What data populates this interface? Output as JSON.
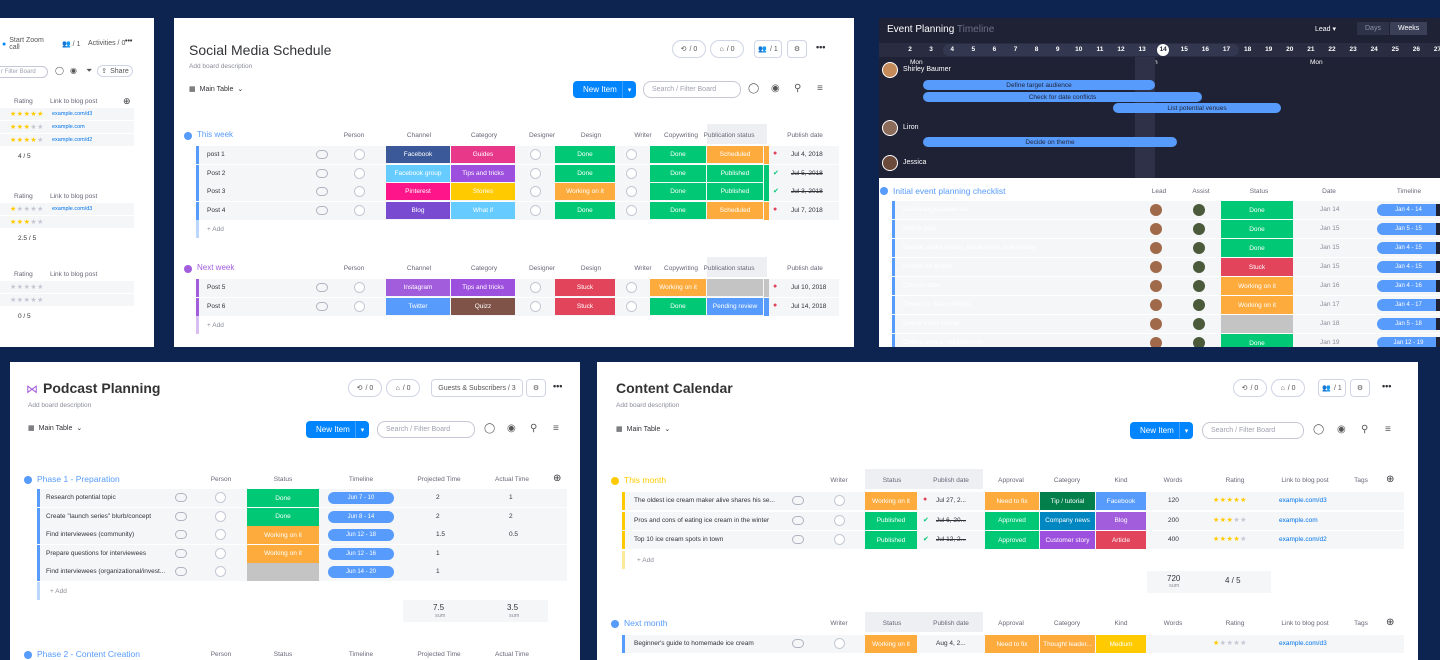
{
  "colors": {
    "bg": "#0d2450",
    "blue": "#0085ff",
    "green": "#00c875",
    "orange": "#fdab3d",
    "red": "#e2445c",
    "purple": "#a25ddc",
    "gray": "#c4c4c4"
  },
  "p1": {
    "start_zoom": "Start Zoom call",
    "members": "1",
    "activities": "Activities / 0",
    "filter": "r Filter Board",
    "share": "Share",
    "groups": [
      {
        "h_rating": "Rating",
        "h_link": "Link to blog post",
        "rows": [
          {
            "stars": 5,
            "link": "example.com/d3"
          },
          {
            "stars": 3,
            "link": "example.com"
          },
          {
            "stars": 4,
            "link": "example.com/d2"
          }
        ],
        "summary": "4 / 5"
      },
      {
        "h_rating": "Rating",
        "h_link": "Link to blog post",
        "rows": [
          {
            "stars": 1,
            "link": "example.com/d3"
          },
          {
            "stars": 3,
            "link": ""
          }
        ],
        "summary": "2.5 / 5"
      },
      {
        "h_rating": "Rating",
        "h_link": "Link to blog post",
        "rows": [
          {
            "stars": 0,
            "link": ""
          },
          {
            "stars": 0,
            "link": ""
          }
        ],
        "summary": "0 / 5"
      }
    ]
  },
  "p2": {
    "title": "Social Media Schedule",
    "desc": "Add board description",
    "view": "Main Table",
    "new_item": "New Item",
    "search": "Search / Filter Board",
    "count_a": "/ 0",
    "count_b": "/ 0",
    "members": "/ 1",
    "headers": {
      "person": "Person",
      "channel": "Channel",
      "category": "Category",
      "designer": "Designer",
      "design": "Design",
      "writer": "Writer",
      "copywriting": "Copywriting",
      "pubstatus": "Publication status",
      "pubdate": "Publish date"
    },
    "groups": [
      {
        "name": "This week",
        "color": "#579bfc",
        "add": "+ Add",
        "rows": [
          {
            "name": "post 1",
            "channel": "Facebook",
            "channel_c": "#3b5998",
            "cat": "Guides",
            "cat_c": "#e8388a",
            "design": "Done",
            "copy": "Done",
            "pub": "Scheduled",
            "pub_c": "#fdab3d",
            "date": "Jul 4, 2018",
            "strike": false,
            "alert": true
          },
          {
            "name": "Post 2",
            "channel": "Facebook group",
            "channel_c": "#66ccff",
            "cat": "Tips and tricks",
            "cat_c": "#9d50dd",
            "design": "Done",
            "copy": "Done",
            "pub": "Published",
            "pub_c": "#00c875",
            "date": "Jul 5, 2018",
            "strike": true,
            "alert": false
          },
          {
            "name": "Post 3",
            "channel": "Pinterest",
            "channel_c": "#ff158a",
            "cat": "Stories",
            "cat_c": "#ffcb00",
            "design": "Working on it",
            "design_c": "#fdab3d",
            "copy": "Done",
            "pub": "Published",
            "pub_c": "#00c875",
            "date": "Jul 3, 2018",
            "strike": true,
            "alert": false
          },
          {
            "name": "Post 4",
            "channel": "Blog",
            "channel_c": "#784bd1",
            "cat": "What if",
            "cat_c": "#66ccff",
            "design": "Done",
            "copy": "Done",
            "pub": "Scheduled",
            "pub_c": "#fdab3d",
            "date": "Jul 7, 2018",
            "strike": false,
            "alert": true
          }
        ]
      },
      {
        "name": "Next week",
        "color": "#a25ddc",
        "add": "+ Add",
        "rows": [
          {
            "name": "Post 5",
            "channel": "Instagram",
            "channel_c": "#a25ddc",
            "cat": "Tips and tricks",
            "cat_c": "#9d50dd",
            "design": "Stuck",
            "design_c": "#e2445c",
            "copy": "Working on it",
            "copy_c": "#fdab3d",
            "pub": "",
            "pub_c": "#c4c4c4",
            "date": "Jul 10, 2018",
            "strike": false,
            "alert": true
          },
          {
            "name": "Post 6",
            "channel": "Twitter",
            "channel_c": "#579bfc",
            "cat": "Quizz",
            "cat_c": "#7f5347",
            "design": "Stuck",
            "design_c": "#e2445c",
            "copy": "Done",
            "pub": "Pending review",
            "pub_c": "#579bfc",
            "date": "Jul 14, 2018",
            "strike": false,
            "alert": true
          }
        ]
      }
    ]
  },
  "p3": {
    "title": "Event Planning",
    "view": "Timeline",
    "lead": "Lead",
    "days": "Days",
    "weeks": "Weeks",
    "dates": [
      "2",
      "3",
      "4",
      "5",
      "6",
      "7",
      "8",
      "9",
      "10",
      "11",
      "12",
      "13",
      "14",
      "15",
      "16",
      "17",
      "18",
      "19",
      "20",
      "21",
      "22",
      "23",
      "24",
      "25",
      "26",
      "27"
    ],
    "mon": "Mon",
    "people": [
      {
        "name": "Shirley Baumer",
        "bars": [
          "Define target audience",
          "Check for date conflicts",
          "List potential venues"
        ]
      },
      {
        "name": "Liron",
        "bars": [
          "Decide on theme"
        ]
      },
      {
        "name": "Jessica",
        "bars": []
      }
    ],
    "group": "Initial event planning checklist",
    "headers": {
      "lead": "Lead",
      "assist": "Assist",
      "status": "Status",
      "date": "Date",
      "timeline": "Timeline"
    },
    "rows": [
      {
        "name": "Define target audience",
        "status": "Done",
        "status_c": "#00c875",
        "date": "Jan 14",
        "tl": "Jan 4 - 14"
      },
      {
        "name": "Define goal",
        "status": "Done",
        "status_c": "#00c875",
        "date": "Jan 15",
        "tl": "Jan 5 - 15"
      },
      {
        "name": "Decide; make money, break even, lose money",
        "status": "Done",
        "status_c": "#00c875",
        "date": "Jan 15",
        "tl": "Jan 4 - 15"
      },
      {
        "name": "Decide on theme",
        "status": "Stuck",
        "status_c": "#e2445c",
        "date": "Jan 15",
        "tl": "Jan 4 - 15"
      },
      {
        "name": "Choose date",
        "status": "Working on it",
        "status_c": "#fdab3d",
        "date": "Jan 16",
        "tl": "Jan 4 - 16"
      },
      {
        "name": "Check for date conflicts",
        "status": "Working on it",
        "status_c": "#fdab3d",
        "date": "Jan 17",
        "tl": "Jan 4 - 17"
      },
      {
        "name": "Define event format",
        "status": "",
        "status_c": "#c4c4c4",
        "date": "Jan 18",
        "tl": "Jan 5 - 18"
      },
      {
        "name": "Outline venue requirements",
        "status": "Done",
        "status_c": "#00c875",
        "date": "Jan 19",
        "tl": "Jan 12 - 19"
      }
    ]
  },
  "p4": {
    "title": "Podcast Planning",
    "desc": "Add board description",
    "view": "Main Table",
    "new_item": "New Item",
    "search": "Search / Filter Board",
    "count_a": "/ 0",
    "count_b": "/ 0",
    "guests": "Guests & Subscribers / 3",
    "headers": {
      "person": "Person",
      "status": "Status",
      "timeline": "Timeline",
      "proj": "Projected Time",
      "actual": "Actual Time"
    },
    "group1": {
      "name": "Phase 1 - Preparation",
      "add": "+ Add",
      "rows": [
        {
          "name": "Research potential topic",
          "status": "Done",
          "status_c": "#00c875",
          "tl": "Jun 7 - 10",
          "proj": "2",
          "act": "1"
        },
        {
          "name": "Create \"launch series\" blurb/concept",
          "status": "Done",
          "status_c": "#00c875",
          "tl": "Jun 8 - 14",
          "proj": "2",
          "act": "2"
        },
        {
          "name": "Find interviewees (community)",
          "status": "Working on it",
          "status_c": "#fdab3d",
          "tl": "Jun 12 - 18",
          "proj": "1.5",
          "act": "0.5"
        },
        {
          "name": "Prepare questions for interviewees",
          "status": "Working on it",
          "status_c": "#fdab3d",
          "tl": "Jun 12 - 16",
          "proj": "1",
          "act": ""
        },
        {
          "name": "Find interviewees (organizational/invest...",
          "status": "",
          "status_c": "#c4c4c4",
          "tl": "Jun 14 - 20",
          "proj": "1",
          "act": ""
        }
      ],
      "sum_proj": "7.5",
      "sum_act": "3.5",
      "sum": "sum"
    },
    "group2": {
      "name": "Phase 2 - Content Creation"
    }
  },
  "p5": {
    "title": "Content Calendar",
    "desc": "Add board description",
    "view": "Main Table",
    "new_item": "New Item",
    "search": "Search / Filter Board",
    "count_a": "/ 0",
    "count_b": "/ 0",
    "members": "/ 1",
    "headers": {
      "writer": "Writer",
      "status": "Status",
      "pubdate": "Publish date",
      "approval": "Approval",
      "category": "Category",
      "kind": "Kind",
      "words": "Words",
      "rating": "Rating",
      "link": "Link to blog post",
      "tags": "Tags"
    },
    "group1": {
      "name": "This month",
      "add": "+ Add",
      "rows": [
        {
          "name": "The oldest ice cream maker alive shares his se...",
          "status": "Working on it",
          "status_c": "#fdab3d",
          "date": "Jul 27, 2...",
          "icon": "red",
          "approval": "Need to fix",
          "approval_c": "#fdab3d",
          "cat": "Tip / tutorial",
          "cat_c": "#037f4c",
          "kind": "Facebook",
          "kind_c": "#579bfc",
          "words": "120",
          "stars": 5,
          "link": "example.com/d3"
        },
        {
          "name": "Pros and cons of eating ice cream in the winter",
          "status": "Published",
          "status_c": "#00c875",
          "date": "Jul 6, 20...",
          "icon": "green",
          "approval": "Approved",
          "approval_c": "#00c875",
          "cat": "Company news",
          "cat_c": "#0086c0",
          "kind": "Blog",
          "kind_c": "#a25ddc",
          "words": "200",
          "stars": 3,
          "link": "example.com"
        },
        {
          "name": "Top 10 ice cream spots in town",
          "status": "Published",
          "status_c": "#00c875",
          "date": "Jul 12, 2...",
          "icon": "green",
          "approval": "Approved",
          "approval_c": "#00c875",
          "cat": "Customer story",
          "cat_c": "#9d50dd",
          "kind": "Article",
          "kind_c": "#e2445c",
          "words": "400",
          "stars": 4,
          "link": "example.com/d2"
        }
      ],
      "sum_words": "720",
      "sum": "sum",
      "sum_rating": "4 / 5"
    },
    "group2": {
      "name": "Next month",
      "rows": [
        {
          "name": "Beginner's guide to homemade ice cream",
          "status": "Working on it",
          "status_c": "#fdab3d",
          "date": "Aug 4, 2...",
          "approval": "Need to fix",
          "approval_c": "#fdab3d",
          "cat": "Thought leader...",
          "cat_c": "#fdab3d",
          "kind": "Medium",
          "kind_c": "#ffcb00",
          "words": "",
          "stars": 1,
          "link": "example.com/d3"
        }
      ]
    }
  }
}
